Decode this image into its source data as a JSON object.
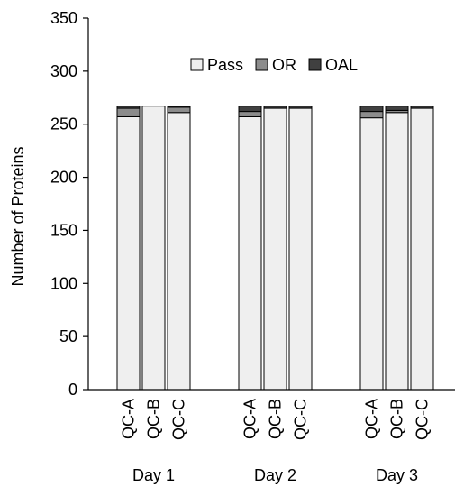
{
  "chart_data": {
    "type": "bar",
    "stacked": true,
    "title": "",
    "xlabel": "",
    "ylabel": "Number of Proteins",
    "ylim": [
      0,
      350
    ],
    "yticks": [
      0,
      50,
      100,
      150,
      200,
      250,
      300,
      350
    ],
    "grid": false,
    "legend_position": "top-center",
    "groups": [
      {
        "label": "Day 1",
        "categories": [
          "QC-A",
          "QC-B",
          "QC-C"
        ]
      },
      {
        "label": "Day 2",
        "categories": [
          "QC-A",
          "QC-B",
          "QC-C"
        ]
      },
      {
        "label": "Day 3",
        "categories": [
          "QC-A",
          "QC-B",
          "QC-C"
        ]
      }
    ],
    "series": [
      {
        "name": "Pass",
        "color": "#efefef",
        "values": [
          257,
          267,
          261,
          257,
          265,
          265,
          256,
          261,
          265
        ]
      },
      {
        "name": "OR",
        "color": "#8c8c8c",
        "values": [
          8,
          0,
          5,
          5,
          0,
          0,
          6,
          2,
          0
        ]
      },
      {
        "name": "OAL",
        "color": "#404040",
        "values": [
          2,
          0,
          1,
          5,
          2,
          2,
          5,
          4,
          2
        ]
      }
    ]
  }
}
